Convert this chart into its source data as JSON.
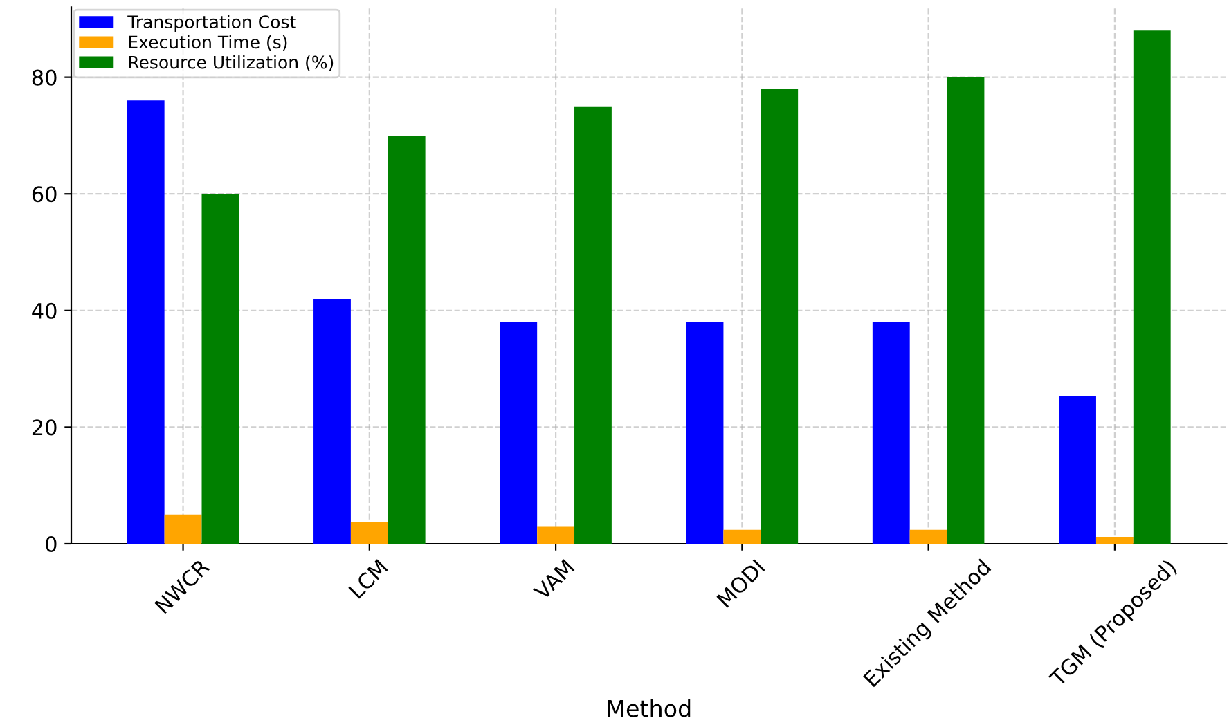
{
  "chart_data": {
    "type": "bar",
    "xlabel": "Method",
    "categories": [
      "NWCR",
      "LCM",
      "VAM",
      "MODI",
      "Existing Method",
      "TGM (Proposed)"
    ],
    "series": [
      {
        "name": "Transportation Cost",
        "color": "#0000ff",
        "values": [
          76,
          42,
          38,
          38,
          38,
          25.4
        ]
      },
      {
        "name": "Execution Time (s)",
        "color": "#ffa500",
        "values": [
          5.0,
          3.8,
          2.9,
          2.4,
          2.4,
          1.2
        ]
      },
      {
        "name": "Resource Utilization (%)",
        "color": "#008000",
        "values": [
          60,
          70,
          75,
          78,
          80,
          88
        ]
      }
    ],
    "ylim": [
      0,
      92
    ],
    "yticks": [
      0,
      20,
      40,
      60,
      80
    ],
    "grid": true,
    "legend": "top left"
  }
}
